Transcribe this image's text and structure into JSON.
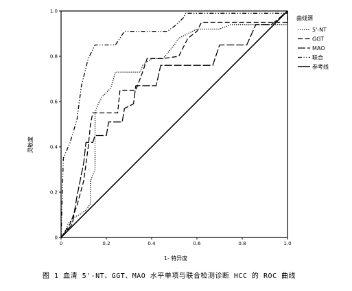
{
  "caption": "图 1  血清 5'-NT、GGT、MAO 水平单项与联合检测诊断 HCC 的 ROC 曲线",
  "chart_data": {
    "type": "line",
    "title": "",
    "xlabel": "1- 特异度",
    "ylabel": "灵敏度",
    "xlim": [
      0,
      1
    ],
    "ylim": [
      0,
      1
    ],
    "x_ticks": [
      "0",
      "0.2",
      "0.4",
      "0.6",
      "0.8",
      "1.0"
    ],
    "y_ticks": [
      "0",
      "0.2",
      "0.4",
      "0.6",
      "0.8",
      "1.0"
    ],
    "grid": false,
    "legend_title": "曲线源",
    "legend_position": "top-right-outside",
    "series": [
      {
        "name": "5'-NT",
        "dash": "dotted",
        "points": [
          [
            0,
            0
          ],
          [
            0.02,
            0.03
          ],
          [
            0.03,
            0.06
          ],
          [
            0.06,
            0.09
          ],
          [
            0.08,
            0.1
          ],
          [
            0.11,
            0.12
          ],
          [
            0.13,
            0.15
          ],
          [
            0.13,
            0.25
          ],
          [
            0.15,
            0.3
          ],
          [
            0.15,
            0.55
          ],
          [
            0.16,
            0.58
          ],
          [
            0.18,
            0.62
          ],
          [
            0.22,
            0.66
          ],
          [
            0.24,
            0.73
          ],
          [
            0.35,
            0.73
          ],
          [
            0.36,
            0.76
          ],
          [
            0.4,
            0.79
          ],
          [
            0.45,
            0.79
          ],
          [
            0.5,
            0.85
          ],
          [
            0.52,
            0.88
          ],
          [
            0.6,
            0.92
          ],
          [
            0.7,
            0.92
          ],
          [
            0.75,
            0.94
          ],
          [
            1,
            0.94
          ],
          [
            1,
            1
          ]
        ]
      },
      {
        "name": "GGT",
        "dash": "dashed",
        "points": [
          [
            0,
            0
          ],
          [
            0.04,
            0.06
          ],
          [
            0.07,
            0.14
          ],
          [
            0.1,
            0.25
          ],
          [
            0.12,
            0.4
          ],
          [
            0.13,
            0.5
          ],
          [
            0.14,
            0.55
          ],
          [
            0.25,
            0.55
          ],
          [
            0.26,
            0.65
          ],
          [
            0.33,
            0.65
          ],
          [
            0.36,
            0.73
          ],
          [
            0.38,
            0.79
          ],
          [
            0.45,
            0.79
          ],
          [
            0.52,
            0.8
          ],
          [
            0.56,
            0.88
          ],
          [
            0.6,
            0.91
          ],
          [
            0.62,
            0.95
          ],
          [
            1,
            0.95
          ],
          [
            1,
            1
          ]
        ]
      },
      {
        "name": "MAO",
        "dash": "longdash",
        "points": [
          [
            0,
            0
          ],
          [
            0.05,
            0.06
          ],
          [
            0.07,
            0.18
          ],
          [
            0.1,
            0.33
          ],
          [
            0.11,
            0.42
          ],
          [
            0.14,
            0.42
          ],
          [
            0.15,
            0.45
          ],
          [
            0.2,
            0.45
          ],
          [
            0.21,
            0.51
          ],
          [
            0.27,
            0.51
          ],
          [
            0.28,
            0.57
          ],
          [
            0.32,
            0.59
          ],
          [
            0.33,
            0.67
          ],
          [
            0.42,
            0.67
          ],
          [
            0.44,
            0.76
          ],
          [
            0.67,
            0.76
          ],
          [
            0.7,
            0.85
          ],
          [
            0.82,
            0.85
          ],
          [
            0.86,
            0.94
          ],
          [
            0.93,
            0.94
          ],
          [
            1,
            1
          ]
        ]
      },
      {
        "name": "联合",
        "dash": "dashdot",
        "points": [
          [
            0,
            0
          ],
          [
            0.01,
            0.35
          ],
          [
            0.04,
            0.42
          ],
          [
            0.07,
            0.52
          ],
          [
            0.09,
            0.67
          ],
          [
            0.12,
            0.79
          ],
          [
            0.15,
            0.85
          ],
          [
            0.24,
            0.85
          ],
          [
            0.26,
            0.88
          ],
          [
            0.28,
            0.91
          ],
          [
            0.47,
            0.91
          ],
          [
            0.51,
            0.94
          ],
          [
            0.54,
            0.97
          ],
          [
            0.55,
            0.99
          ],
          [
            1,
            0.99
          ],
          [
            1,
            1
          ]
        ]
      },
      {
        "name": "参考线",
        "dash": "solid",
        "points": [
          [
            0,
            0
          ],
          [
            1,
            1
          ]
        ]
      }
    ]
  }
}
